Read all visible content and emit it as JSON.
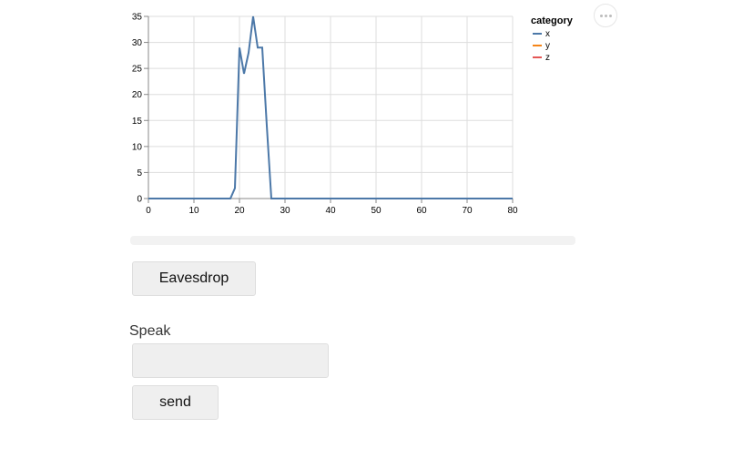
{
  "chart_data": {
    "type": "line",
    "x_ticks": [
      0,
      10,
      20,
      30,
      40,
      50,
      60,
      70,
      80
    ],
    "y_ticks": [
      0,
      5,
      10,
      15,
      20,
      25,
      30,
      35
    ],
    "xlim": [
      0,
      80
    ],
    "ylim": [
      0,
      35
    ],
    "grid": true,
    "legend": {
      "title": "category",
      "placement": "right",
      "items": [
        {
          "name": "x",
          "color": "#4c78a8"
        },
        {
          "name": "y",
          "color": "#f58518"
        },
        {
          "name": "z",
          "color": "#e45756"
        }
      ]
    },
    "series": [
      {
        "name": "x",
        "color": "#4c78a8",
        "x": [
          0,
          1,
          2,
          3,
          4,
          5,
          6,
          7,
          8,
          9,
          10,
          11,
          12,
          13,
          14,
          15,
          16,
          17,
          18,
          19,
          20,
          21,
          22,
          23,
          24,
          25,
          26,
          27,
          28,
          29,
          30,
          35,
          40,
          45,
          50,
          55,
          60,
          65,
          70,
          75,
          80
        ],
        "y": [
          0,
          0,
          0,
          0,
          0,
          0,
          0,
          0,
          0,
          0,
          0,
          0,
          0,
          0,
          0,
          0,
          0,
          0,
          0,
          2,
          29,
          24,
          28,
          35,
          29,
          29,
          14,
          0,
          0,
          0,
          0,
          0,
          0,
          0,
          0,
          0,
          0,
          0,
          0,
          0,
          0
        ]
      },
      {
        "name": "y",
        "color": "#f58518",
        "x": [],
        "y": []
      },
      {
        "name": "z",
        "color": "#e45756",
        "x": [],
        "y": []
      }
    ]
  },
  "chart_menu": {
    "icon": "more-horizontal-icon"
  },
  "progress": {
    "value": 0
  },
  "buttons": {
    "eavesdrop_label": "Eavesdrop",
    "send_label": "send"
  },
  "speak": {
    "label": "Speak",
    "value": "",
    "placeholder": ""
  }
}
